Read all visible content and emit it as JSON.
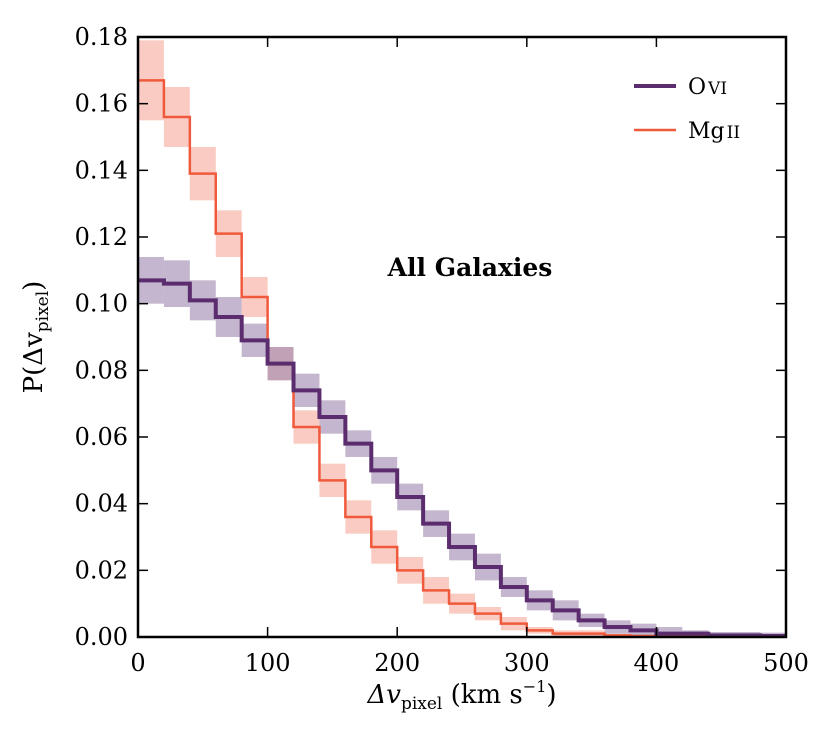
{
  "chart_data": {
    "type": "line",
    "subtype": "step-histogram",
    "title": "",
    "annotation": "All Galaxies",
    "xlabel": {
      "main": "Δv",
      "sub": "pixel",
      "units": " (km s",
      "units_sup": "−1",
      "units_close": ")"
    },
    "ylabel": {
      "main": "P(Δv",
      "sub": "pixel",
      "close": ")"
    },
    "xlim": [
      0,
      500
    ],
    "ylim": [
      0,
      0.18
    ],
    "xticks": [
      0,
      100,
      200,
      300,
      400,
      500
    ],
    "xtick_labels": [
      "0",
      "100",
      "200",
      "300",
      "400",
      "500"
    ],
    "yticks": [
      0,
      0.02,
      0.04,
      0.06,
      0.08,
      0.1,
      0.12,
      0.14,
      0.16,
      0.18
    ],
    "ytick_labels": [
      "0.00",
      "0.02",
      "0.04",
      "0.06",
      "0.08",
      "0.10",
      "0.12",
      "0.14",
      "0.16",
      "0.18"
    ],
    "grid": false,
    "legend_position": "top-right",
    "bin_width": 20,
    "series": [
      {
        "name": "O VI",
        "label_main": "O",
        "label_ion": "VI",
        "color": "#5b2d6e",
        "band_color": "#9b85ad",
        "line_width": 4,
        "bins": [
          0,
          20,
          40,
          60,
          80,
          100,
          120,
          140,
          160,
          180,
          200,
          220,
          240,
          260,
          280,
          300,
          320,
          340,
          360,
          380,
          400,
          420,
          440,
          460,
          480
        ],
        "values": [
          0.107,
          0.106,
          0.101,
          0.096,
          0.089,
          0.082,
          0.074,
          0.066,
          0.058,
          0.05,
          0.042,
          0.034,
          0.027,
          0.021,
          0.015,
          0.011,
          0.008,
          0.005,
          0.003,
          0.002,
          0.001,
          0.001,
          0.0005,
          0.0005,
          0.0003
        ],
        "err": [
          0.007,
          0.007,
          0.006,
          0.006,
          0.005,
          0.005,
          0.005,
          0.005,
          0.004,
          0.004,
          0.004,
          0.004,
          0.004,
          0.004,
          0.003,
          0.003,
          0.003,
          0.002,
          0.002,
          0.002,
          0.002,
          0.001,
          0.001,
          0.001,
          0.001
        ]
      },
      {
        "name": "Mg II",
        "label_main": "Mg",
        "label_ion": "II",
        "color": "#f05a3c",
        "band_color": "#f7a899",
        "line_width": 2.5,
        "bins": [
          0,
          20,
          40,
          60,
          80,
          100,
          120,
          140,
          160,
          180,
          200,
          220,
          240,
          260,
          280,
          300,
          320,
          340,
          360,
          380,
          400,
          420,
          440,
          460,
          480
        ],
        "values": [
          0.167,
          0.156,
          0.139,
          0.121,
          0.102,
          0.082,
          0.063,
          0.047,
          0.036,
          0.027,
          0.02,
          0.014,
          0.01,
          0.007,
          0.004,
          0.002,
          0.001,
          0.001,
          0.0005,
          0.0003,
          0.0002,
          0.0001,
          0.0001,
          0.0001,
          0.0001
        ],
        "err": [
          0.012,
          0.009,
          0.008,
          0.007,
          0.006,
          0.005,
          0.005,
          0.005,
          0.005,
          0.005,
          0.004,
          0.004,
          0.003,
          0.002,
          0.002,
          0.001,
          0.001,
          0.001,
          0.0005,
          0.0005,
          0.0003,
          0.0002,
          0.0002,
          0.0001,
          0.0001
        ]
      }
    ]
  }
}
